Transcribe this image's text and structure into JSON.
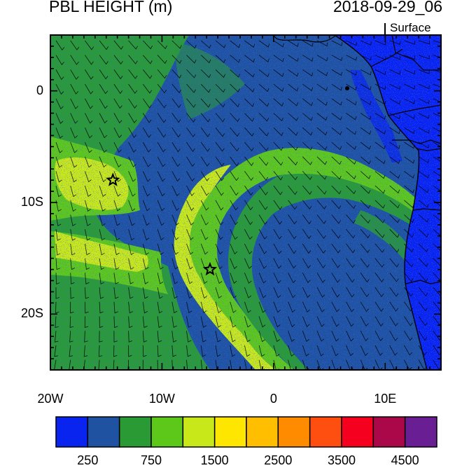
{
  "title_left": "PBL HEIGHT (m)",
  "title_right": "2018-09-29_06",
  "level_label": "Surface",
  "map": {
    "lon_range": [
      -20,
      15
    ],
    "lat_range": [
      -25,
      5
    ],
    "x_ticks": [
      {
        "value": -20,
        "label": "20W"
      },
      {
        "value": -10,
        "label": "10W"
      },
      {
        "value": 0,
        "label": "0"
      },
      {
        "value": 10,
        "label": "10E"
      }
    ],
    "y_ticks": [
      {
        "value": 0,
        "label": "0"
      },
      {
        "value": -10,
        "label": "10S"
      },
      {
        "value": -20,
        "label": "20S"
      }
    ],
    "stations": [
      {
        "name": "station-ascension",
        "lon": -14.4,
        "lat": -8.0
      },
      {
        "name": "station-st-helena",
        "lon": -5.7,
        "lat": -16.0
      }
    ],
    "field_colors": {
      "ocean_deep_blue": "#1f52a0",
      "land_blue": "#0a24f0",
      "green_1000": "#2a9a35",
      "green_1250": "#5ec81a",
      "yellowgreen_1500": "#c8e81a"
    }
  },
  "colorbar": {
    "colors": [
      "#0a24f0",
      "#1f52a0",
      "#2a9a35",
      "#5ec81a",
      "#c8e81a",
      "#ffe600",
      "#ffbe00",
      "#ff8c00",
      "#ff4f10",
      "#f5001e",
      "#aa0848",
      "#6a1e94"
    ],
    "labels": [
      {
        "index": 1,
        "text": "250"
      },
      {
        "index": 3,
        "text": "750"
      },
      {
        "index": 5,
        "text": "1500"
      },
      {
        "index": 7,
        "text": "2500"
      },
      {
        "index": 9,
        "text": "3500"
      },
      {
        "index": 11,
        "text": "4500"
      }
    ]
  }
}
